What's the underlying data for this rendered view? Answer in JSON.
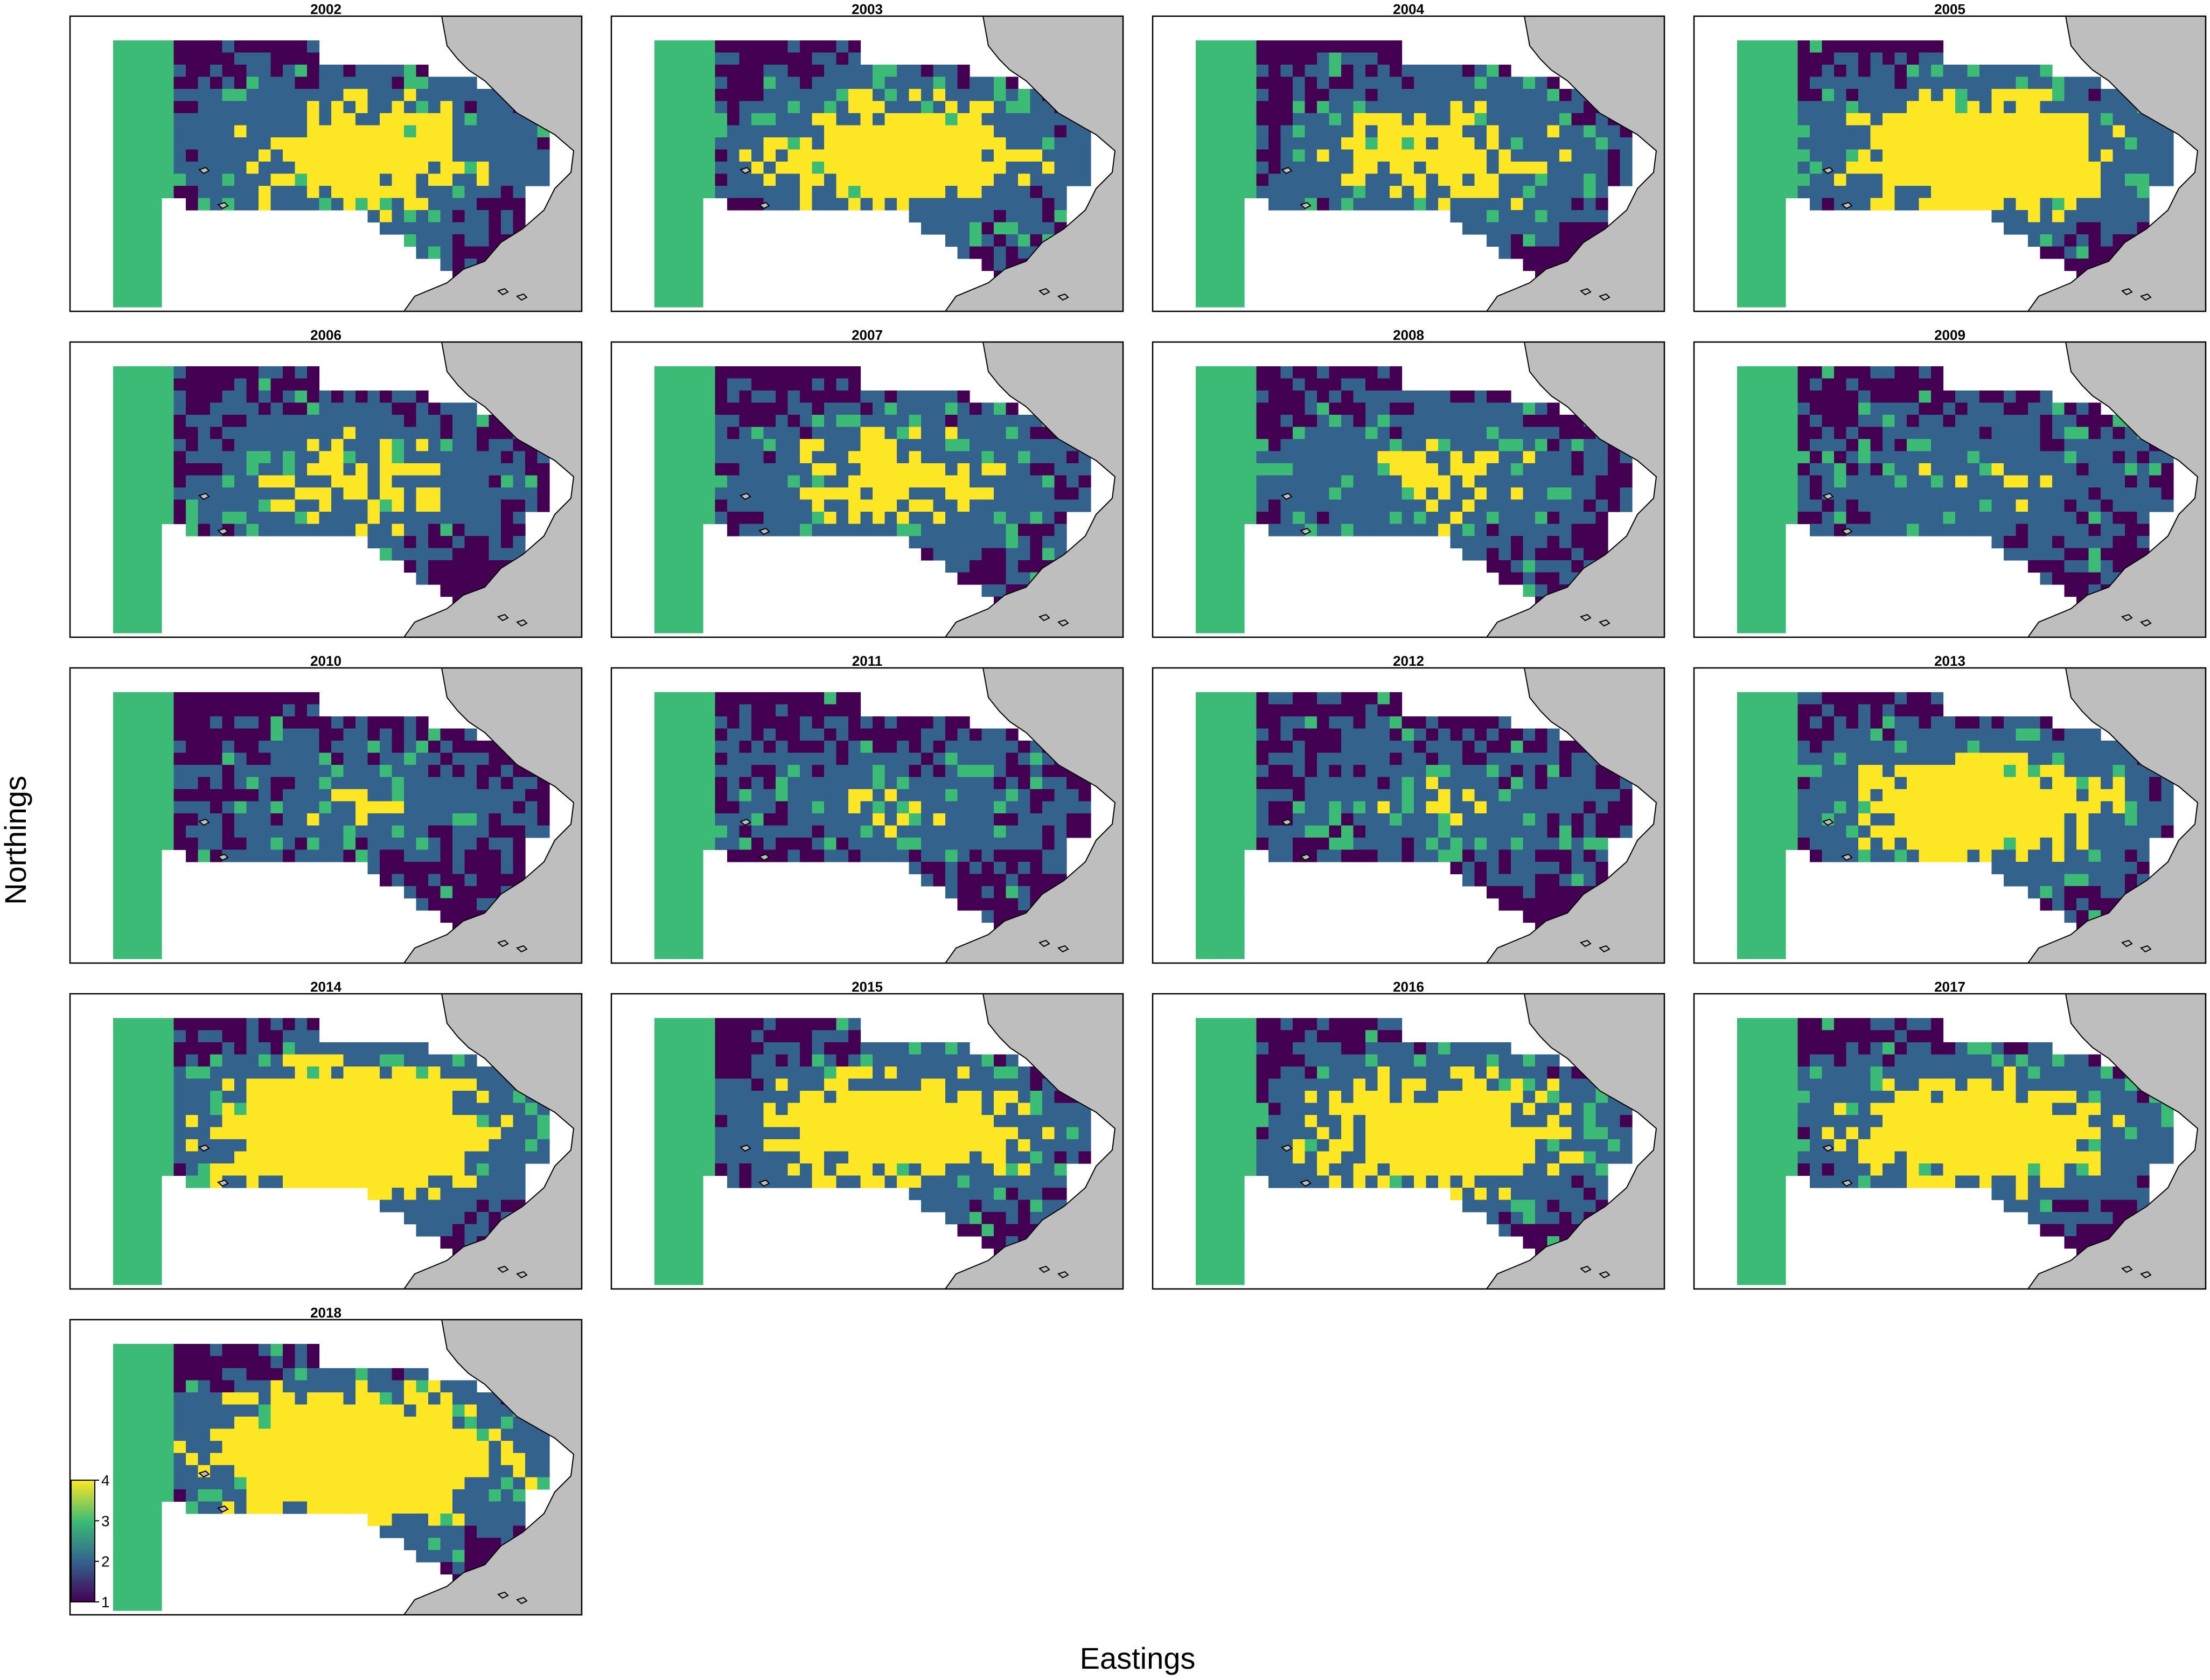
{
  "figure": {
    "x_label": "Eastings",
    "y_label": "Northings"
  },
  "colors": {
    "land": "#bebebe",
    "land_outline": "#000000",
    "panel_border": "#000000",
    "scale": [
      "#440154",
      "#33638d",
      "#3bbb75",
      "#fde725"
    ]
  },
  "legend": {
    "min": 1,
    "max": 4,
    "ticks": [
      "1",
      "2",
      "3",
      "4"
    ]
  },
  "panels": [
    {
      "year": "2002",
      "level": 2.3
    },
    {
      "year": "2003",
      "level": 2.4
    },
    {
      "year": "2004",
      "level": 2.1
    },
    {
      "year": "2005",
      "level": 2.7
    },
    {
      "year": "2006",
      "level": 1.9
    },
    {
      "year": "2007",
      "level": 2.0
    },
    {
      "year": "2008",
      "level": 1.8
    },
    {
      "year": "2009",
      "level": 1.6
    },
    {
      "year": "2010",
      "level": 1.5
    },
    {
      "year": "2011",
      "level": 1.5
    },
    {
      "year": "2012",
      "level": 1.5
    },
    {
      "year": "2013",
      "level": 2.5
    },
    {
      "year": "2014",
      "level": 3.0
    },
    {
      "year": "2015",
      "level": 2.5
    },
    {
      "year": "2016",
      "level": 2.5
    },
    {
      "year": "2017",
      "level": 2.5
    },
    {
      "year": "2018",
      "level": 3.0
    }
  ]
}
